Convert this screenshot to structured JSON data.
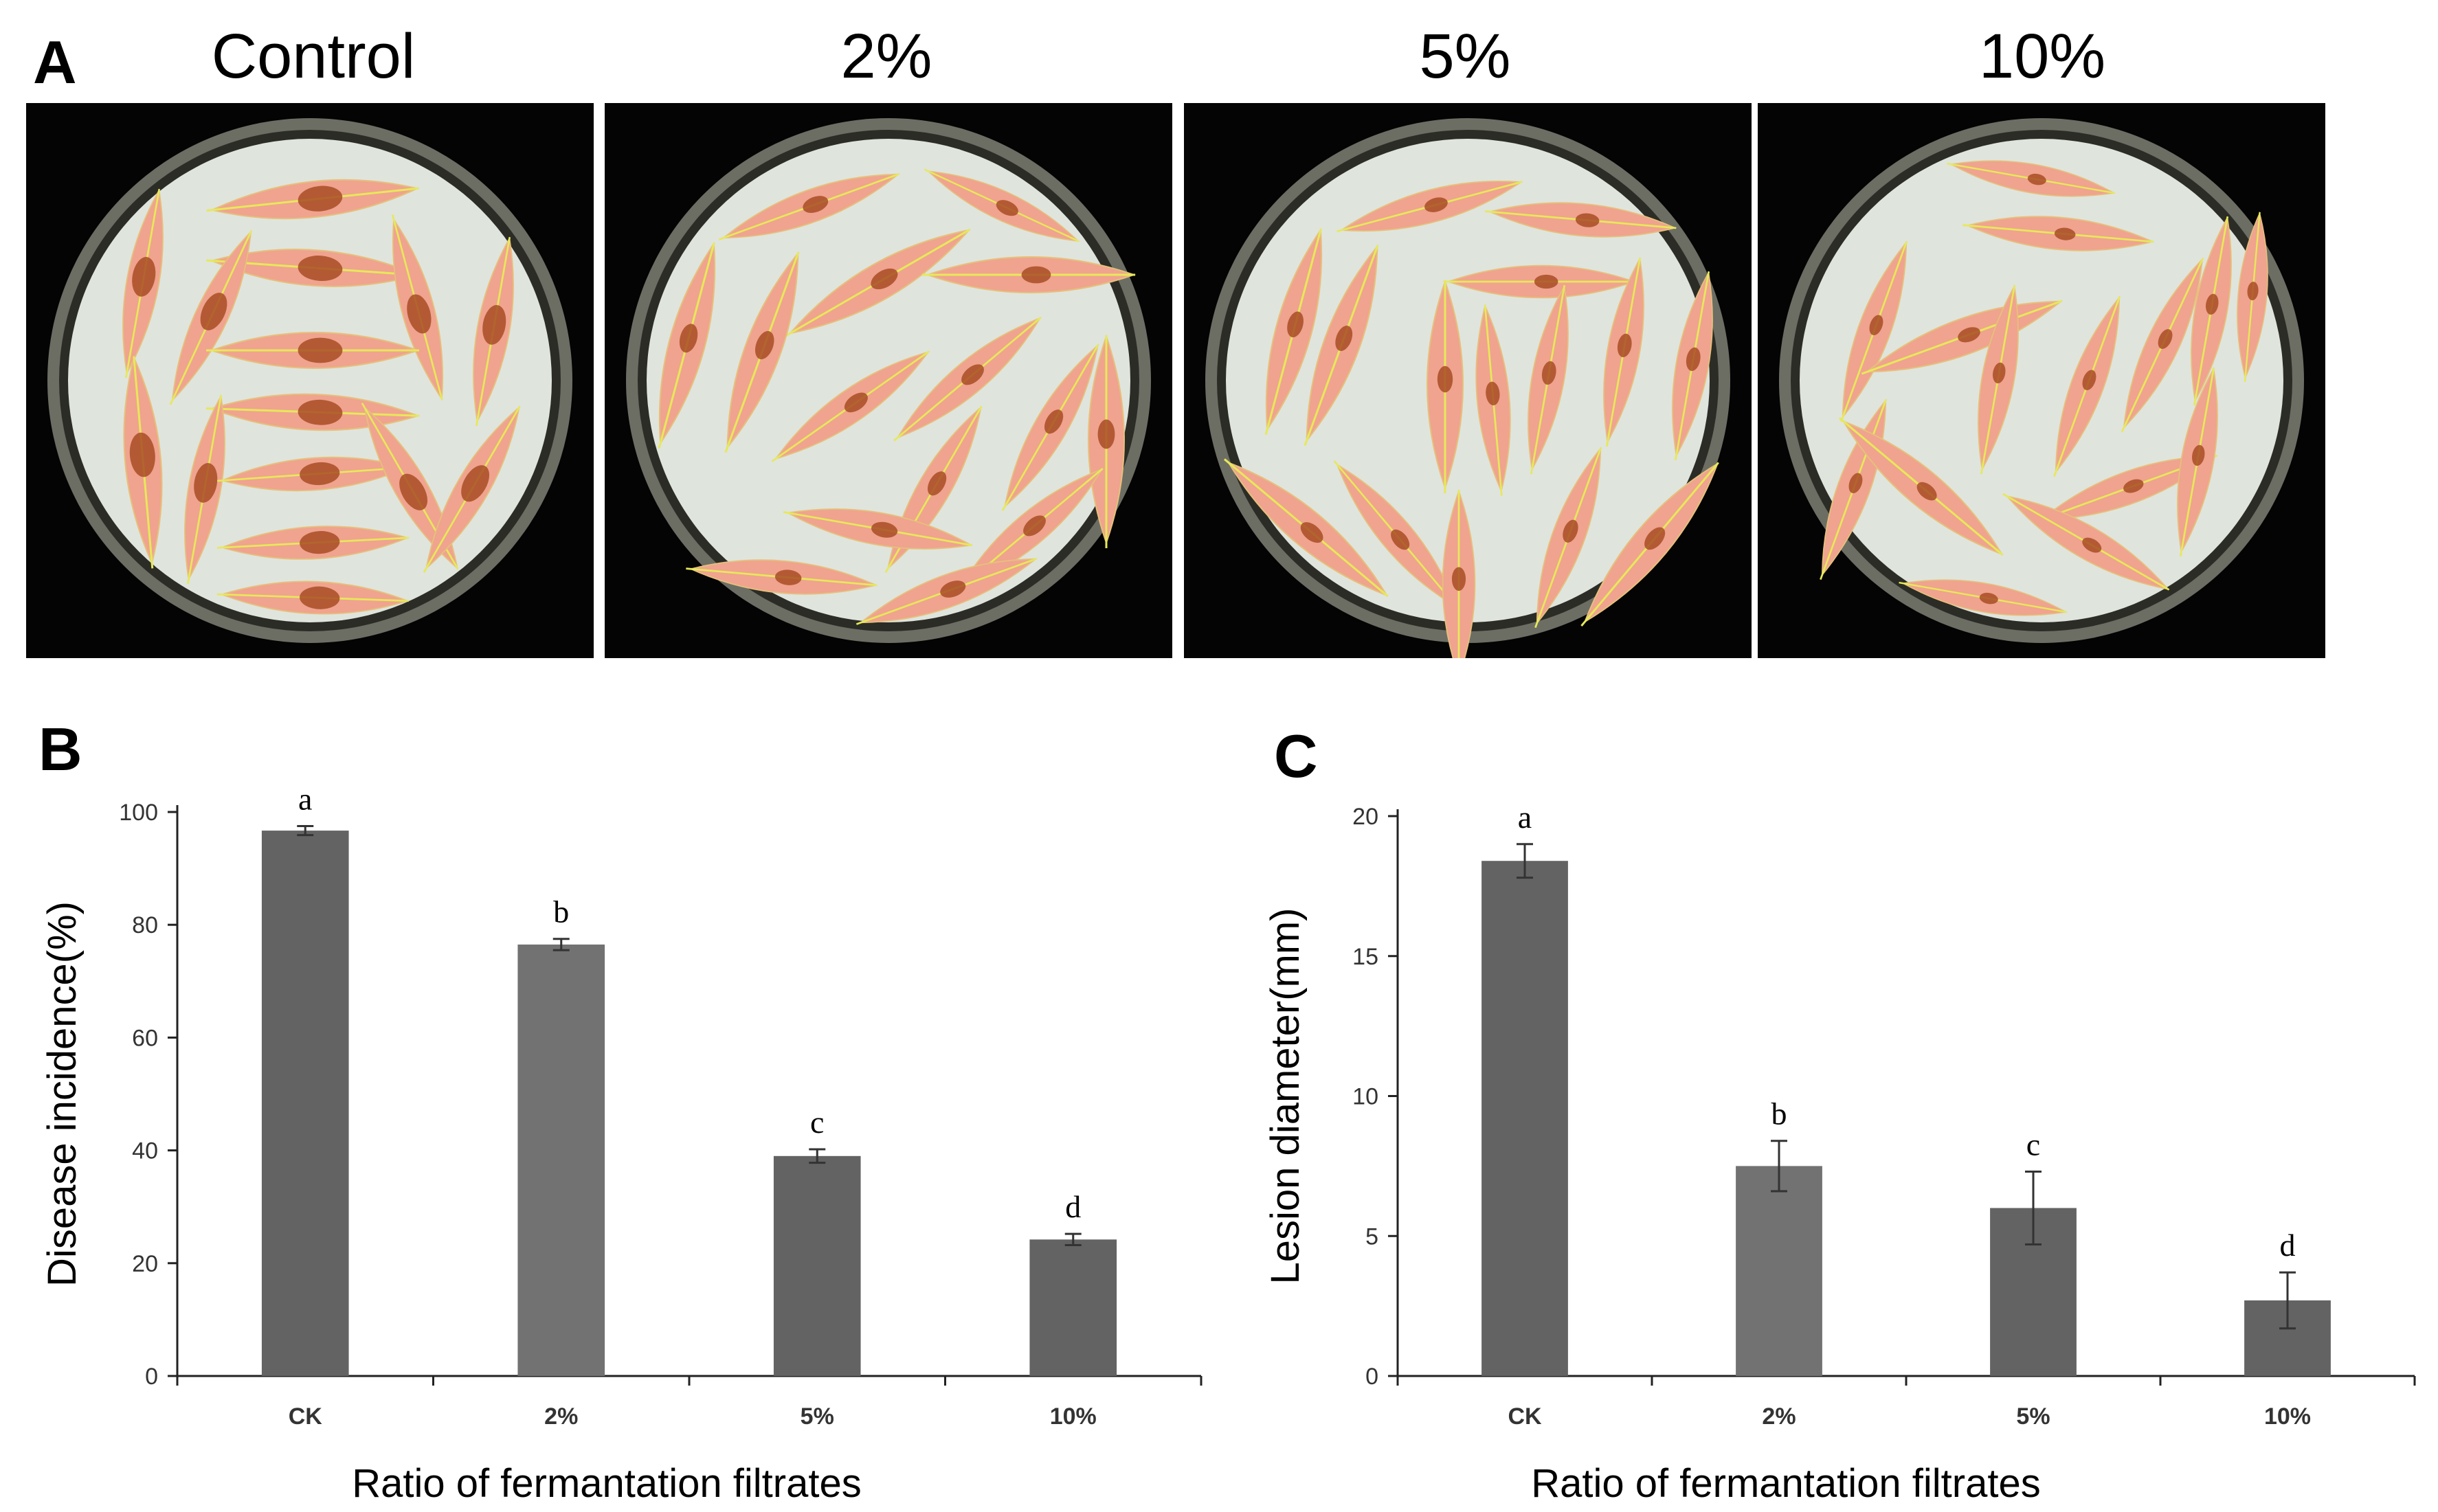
{
  "panel_a": {
    "letter": "A",
    "photos": [
      {
        "title": "Control",
        "treatment": "CK"
      },
      {
        "title": "2%",
        "treatment": "2%"
      },
      {
        "title": "5%",
        "treatment": "5%"
      },
      {
        "title": "10%",
        "treatment": "10%"
      }
    ],
    "colors": {
      "background": "#040404",
      "dish": "#dfe4dd",
      "leaf": "#f0a38f",
      "lesion": "#a84d24",
      "midrib": "#e7e85a"
    }
  },
  "chart_data": [
    {
      "panel": "B",
      "type": "bar",
      "title": "",
      "xlabel": "Ratio of fermantation filtrates",
      "ylabel": "Disease incidence(%)",
      "categories": [
        "CK",
        "2%",
        "5%",
        "10%"
      ],
      "values": [
        96.7,
        76.5,
        39.0,
        24.2
      ],
      "errors": [
        0.8,
        1.0,
        1.2,
        1.0
      ],
      "significance": [
        "a",
        "b",
        "c",
        "d"
      ],
      "ylim": [
        0,
        100
      ],
      "yticks": [
        "0",
        "20",
        "40",
        "60",
        "80",
        "100"
      ],
      "grid": false,
      "bar_colors": [
        "#636363",
        "#727272",
        "#636363",
        "#636363"
      ]
    },
    {
      "panel": "C",
      "type": "bar",
      "title": "",
      "xlabel": "Ratio of fermantation filtrates",
      "ylabel": "Lesion diameter(mm)",
      "categories": [
        "CK",
        "2%",
        "5%",
        "10%"
      ],
      "values": [
        18.4,
        7.5,
        6.0,
        2.7
      ],
      "errors": [
        0.6,
        0.9,
        1.3,
        1.0
      ],
      "significance": [
        "a",
        "b",
        "c",
        "d"
      ],
      "ylim": [
        0,
        20
      ],
      "yticks": [
        "0",
        "5",
        "10",
        "15",
        "20"
      ],
      "grid": false,
      "bar_colors": [
        "#636363",
        "#727272",
        "#636363",
        "#636363"
      ]
    }
  ]
}
